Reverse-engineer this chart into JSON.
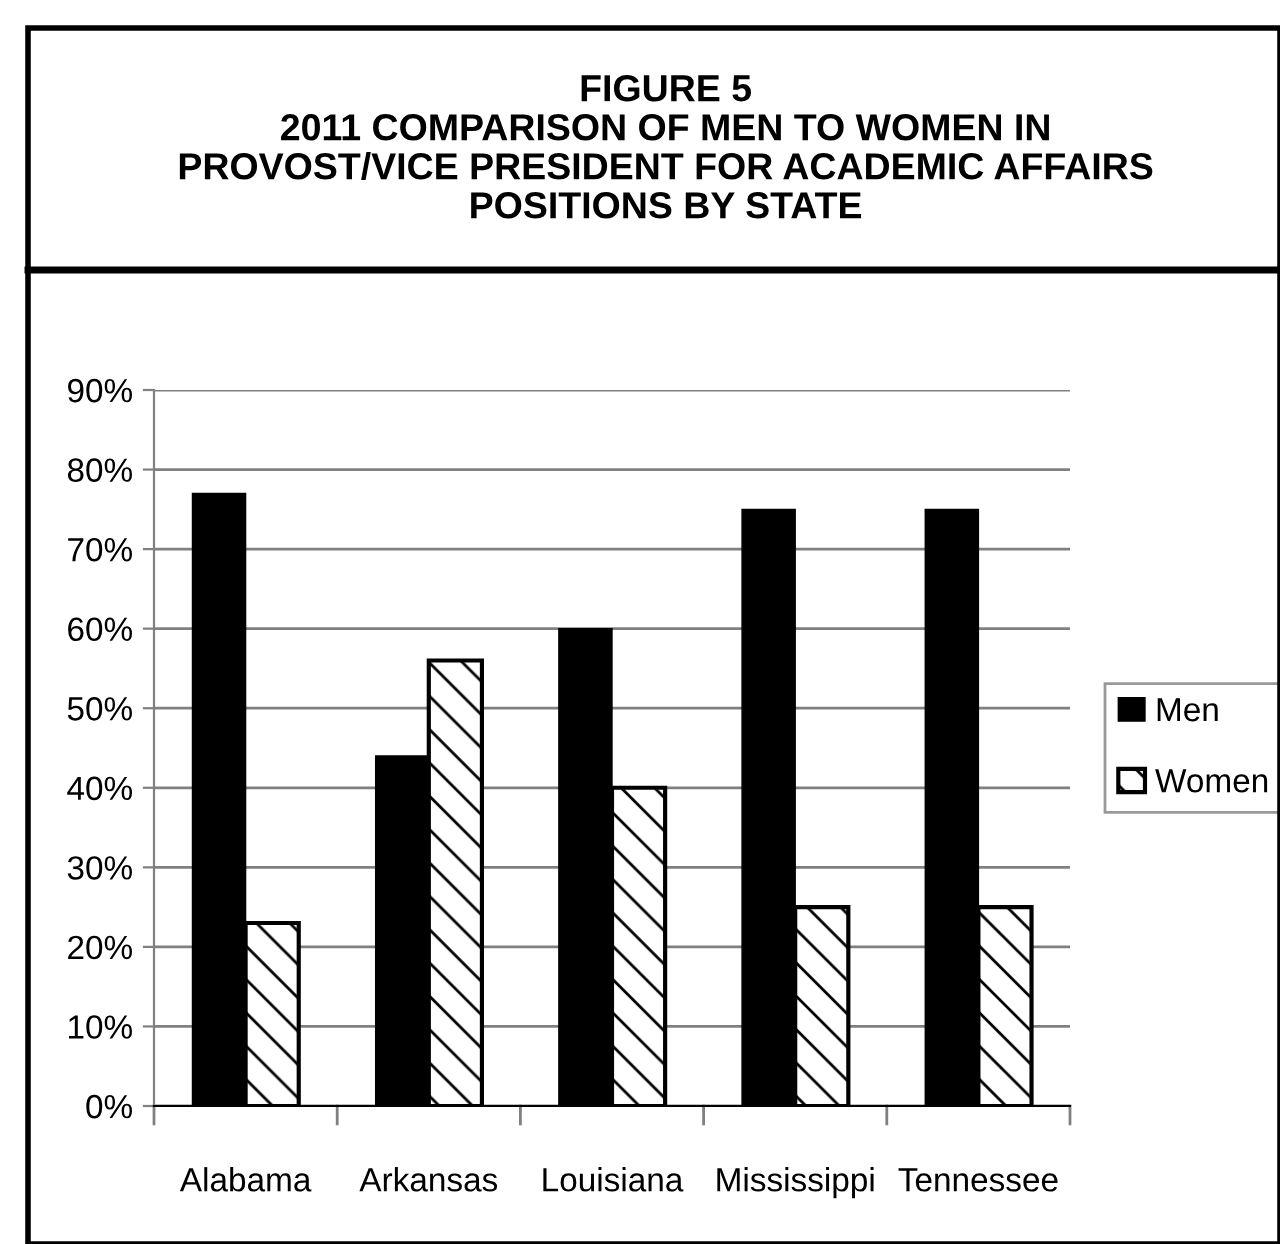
{
  "chart_data": {
    "type": "bar",
    "title": "FIGURE 5\n2011 COMPARISON OF MEN TO WOMEN IN\nPROVOST/VICE PRESIDENT FOR ACADEMIC AFFAIRS\nPOSITIONS BY STATE",
    "categories": [
      "Alabama",
      "Arkansas",
      "Louisiana",
      "Mississippi",
      "Tennessee"
    ],
    "series": [
      {
        "name": "Men",
        "color": "#000000",
        "values": [
          77,
          44,
          60,
          75,
          75
        ]
      },
      {
        "name": "Women",
        "color": "#000000",
        "values": [
          23,
          56,
          40,
          25,
          25
        ]
      }
    ],
    "ylim": [
      0,
      90
    ],
    "yticks": [
      {
        "value": 0,
        "label": "0%"
      },
      {
        "value": 10,
        "label": "10%"
      },
      {
        "value": 20,
        "label": "20%"
      },
      {
        "value": 30,
        "label": "30%"
      },
      {
        "value": 40,
        "label": "40%"
      },
      {
        "value": 50,
        "label": "50%"
      },
      {
        "value": 60,
        "label": "60%"
      },
      {
        "value": 70,
        "label": "70%"
      },
      {
        "value": 80,
        "label": "80%"
      },
      {
        "value": 90,
        "label": "90%"
      }
    ],
    "grid": "y",
    "legend": "right"
  }
}
